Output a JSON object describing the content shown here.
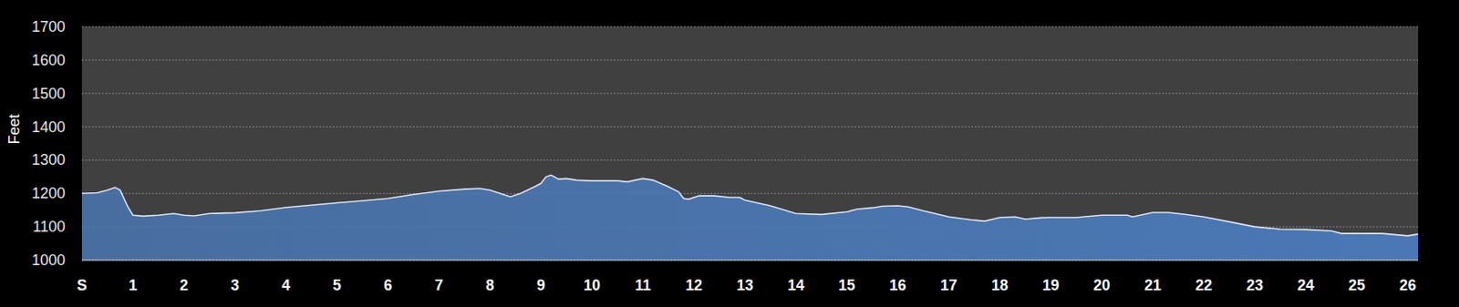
{
  "chart_data": {
    "type": "area",
    "y_label": "Feet",
    "color": "#4a78b5",
    "grid": true,
    "x": [
      0,
      0.3,
      0.5,
      0.65,
      0.75,
      0.9,
      1.0,
      1.2,
      1.5,
      1.8,
      2.0,
      2.2,
      2.5,
      3.0,
      3.5,
      4.0,
      4.5,
      5.0,
      5.5,
      6.0,
      6.5,
      7.0,
      7.5,
      7.8,
      8.0,
      8.2,
      8.4,
      8.6,
      8.9,
      9.0,
      9.1,
      9.2,
      9.35,
      9.5,
      9.7,
      10.0,
      10.5,
      10.7,
      11.0,
      11.2,
      11.5,
      11.7,
      11.8,
      11.9,
      12.1,
      12.4,
      12.7,
      12.9,
      13.0,
      13.5,
      14.0,
      14.5,
      15.0,
      15.2,
      15.5,
      15.7,
      16.0,
      16.2,
      16.5,
      17.0,
      17.5,
      17.7,
      18.0,
      18.3,
      18.5,
      18.8,
      19.0,
      19.5,
      20.0,
      20.5,
      20.6,
      21.0,
      21.3,
      21.6,
      22.0,
      22.5,
      23.0,
      23.5,
      24.0,
      24.5,
      24.7,
      25.0,
      25.5,
      26.0,
      26.2
    ],
    "values": [
      1200,
      1202,
      1210,
      1218,
      1210,
      1160,
      1135,
      1132,
      1135,
      1140,
      1135,
      1133,
      1140,
      1142,
      1148,
      1158,
      1165,
      1172,
      1178,
      1185,
      1197,
      1207,
      1213,
      1215,
      1210,
      1200,
      1190,
      1200,
      1222,
      1230,
      1250,
      1255,
      1243,
      1245,
      1240,
      1238,
      1238,
      1235,
      1245,
      1240,
      1220,
      1205,
      1185,
      1183,
      1193,
      1193,
      1188,
      1188,
      1180,
      1163,
      1140,
      1137,
      1145,
      1153,
      1157,
      1162,
      1163,
      1160,
      1148,
      1130,
      1120,
      1117,
      1128,
      1130,
      1123,
      1127,
      1128,
      1128,
      1135,
      1135,
      1130,
      1143,
      1143,
      1138,
      1130,
      1115,
      1100,
      1093,
      1092,
      1088,
      1080,
      1080,
      1080,
      1073,
      1078
    ],
    "xlim": [
      0,
      26.2
    ],
    "xticks": [
      {
        "value": 0,
        "label": "S"
      },
      1,
      2,
      3,
      4,
      5,
      6,
      7,
      8,
      9,
      10,
      11,
      12,
      13,
      14,
      15,
      16,
      17,
      18,
      19,
      20,
      21,
      22,
      23,
      24,
      25,
      26
    ],
    "ylim": [
      1000,
      1700
    ],
    "yticks": [
      1000,
      1100,
      1200,
      1300,
      1400,
      1500,
      1600,
      1700
    ]
  }
}
